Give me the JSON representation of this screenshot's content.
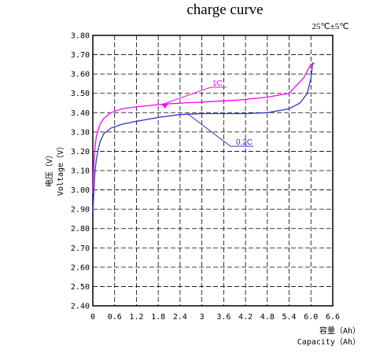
{
  "chart_data": {
    "type": "line",
    "title": "charge curve",
    "condition": "25℃±5℃",
    "ylabel_cn": "电压（V）",
    "ylabel_en": "Voltage（V）",
    "xlabel_cn": "容量（Ah）",
    "xlabel_en": "Capacity（Ah）",
    "xlim": [
      0,
      6.6
    ],
    "ylim": [
      2.4,
      3.8
    ],
    "xticks": [
      "0",
      "0.6",
      "1.2",
      "1.8",
      "2.4",
      "3",
      "3.6",
      "4.2",
      "4.8",
      "5.4",
      "6.0",
      "6.6"
    ],
    "yticks": [
      "2.40",
      "2.50",
      "2.60",
      "2.70",
      "2.80",
      "2.90",
      "3.00",
      "3.10",
      "3.20",
      "3.30",
      "3.40",
      "3.50",
      "3.60",
      "3.70",
      "3.80"
    ],
    "grid": true,
    "series": [
      {
        "name": "1C",
        "color": "#ff00ff",
        "x": [
          0.0,
          0.02,
          0.05,
          0.1,
          0.2,
          0.3,
          0.5,
          0.8,
          1.2,
          2.0,
          3.0,
          4.0,
          4.8,
          5.4,
          5.8,
          6.0,
          6.1
        ],
        "y": [
          2.98,
          3.1,
          3.2,
          3.28,
          3.34,
          3.37,
          3.4,
          3.42,
          3.43,
          3.445,
          3.455,
          3.465,
          3.48,
          3.5,
          3.58,
          3.65,
          3.655
        ]
      },
      {
        "name": "0.2C",
        "color": "#3333cc",
        "x": [
          0.0,
          0.03,
          0.06,
          0.1,
          0.15,
          0.2,
          0.3,
          0.5,
          0.8,
          1.2,
          1.8,
          2.4,
          3.0,
          3.6,
          4.2,
          4.8,
          5.4,
          5.7,
          5.9,
          6.0,
          6.05
        ],
        "y": [
          2.88,
          3.0,
          3.1,
          3.16,
          3.21,
          3.25,
          3.29,
          3.32,
          3.34,
          3.355,
          3.375,
          3.39,
          3.395,
          3.395,
          3.395,
          3.4,
          3.42,
          3.45,
          3.5,
          3.58,
          3.66
        ]
      }
    ],
    "annotations": [
      {
        "text": "1C",
        "color": "#ff00ff"
      },
      {
        "text": "0.2C",
        "color": "#3333cc"
      }
    ]
  }
}
